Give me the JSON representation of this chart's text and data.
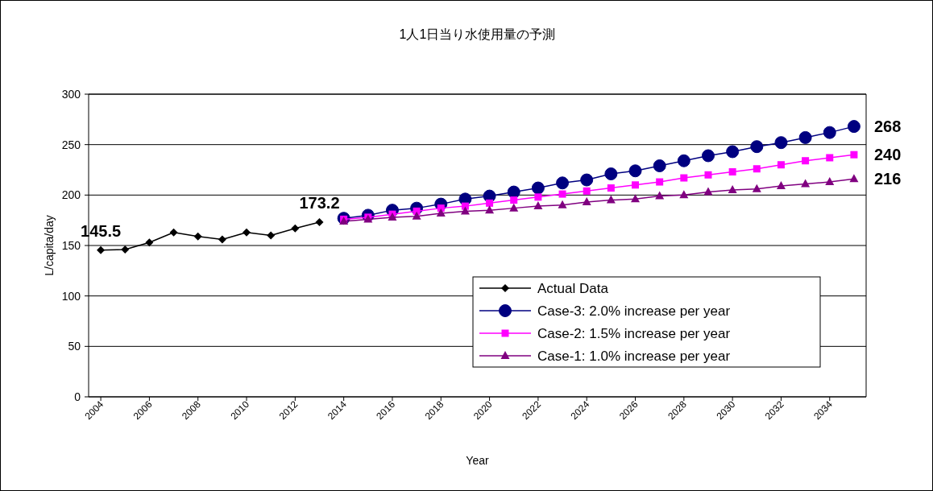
{
  "chart_data": {
    "type": "line",
    "title": "1人1日当り水使用量の予測",
    "xlabel": "Year",
    "ylabel": "L/capita/day",
    "xlim": [
      2003.5,
      2035.5
    ],
    "xticks": [
      2004,
      2006,
      2008,
      2010,
      2012,
      2014,
      2016,
      2018,
      2020,
      2022,
      2024,
      2026,
      2028,
      2030,
      2032,
      2034
    ],
    "ylim": [
      0,
      300
    ],
    "yticks": [
      0,
      50,
      100,
      150,
      200,
      250,
      300
    ],
    "grid": "y",
    "legend": "bottom right",
    "series": [
      {
        "name": "Actual Data",
        "color": "#000000",
        "marker": "diamond",
        "x": [
          2004,
          2005,
          2006,
          2007,
          2008,
          2009,
          2010,
          2011,
          2012,
          2013
        ],
        "values": [
          145.5,
          146,
          153,
          163,
          159,
          156,
          163,
          160,
          167,
          173.2
        ]
      },
      {
        "name": "Case-3: 2.0% increase per year",
        "color": "#000080",
        "marker": "circle",
        "x": [
          2014,
          2015,
          2016,
          2017,
          2018,
          2019,
          2020,
          2021,
          2022,
          2023,
          2024,
          2025,
          2026,
          2027,
          2028,
          2029,
          2030,
          2031,
          2032,
          2033,
          2034,
          2035
        ],
        "values": [
          177,
          180,
          185,
          187,
          191,
          196,
          199,
          203,
          207,
          212,
          215,
          221,
          224,
          229,
          234,
          239,
          243,
          248,
          252,
          257,
          262,
          268
        ]
      },
      {
        "name": "Case-2: 1.5% increase per year",
        "color": "#ff00ff",
        "marker": "square",
        "x": [
          2014,
          2015,
          2016,
          2017,
          2018,
          2019,
          2020,
          2021,
          2022,
          2023,
          2024,
          2025,
          2026,
          2027,
          2028,
          2029,
          2030,
          2031,
          2032,
          2033,
          2034,
          2035
        ],
        "values": [
          176,
          178,
          181,
          184,
          187,
          189,
          192,
          195,
          198,
          201,
          204,
          207,
          210,
          213,
          217,
          220,
          223,
          226,
          230,
          234,
          237,
          240
        ]
      },
      {
        "name": "Case-1: 1.0% increase per year",
        "color": "#800080",
        "marker": "triangle",
        "x": [
          2014,
          2015,
          2016,
          2017,
          2018,
          2019,
          2020,
          2021,
          2022,
          2023,
          2024,
          2025,
          2026,
          2027,
          2028,
          2029,
          2030,
          2031,
          2032,
          2033,
          2034,
          2035
        ],
        "values": [
          174,
          176,
          178,
          179,
          182,
          184,
          185,
          187,
          189,
          190,
          193,
          195,
          196,
          199,
          200,
          203,
          205,
          206,
          209,
          211,
          213,
          216
        ]
      }
    ],
    "annotations": [
      {
        "text": "145.5",
        "x": 2004,
        "y": 145.5
      },
      {
        "text": "173.2",
        "x": 2013,
        "y": 173.2
      },
      {
        "text": "268",
        "x": 2035,
        "y": 268
      },
      {
        "text": "240",
        "x": 2035,
        "y": 240
      },
      {
        "text": "216",
        "x": 2035,
        "y": 216
      }
    ]
  }
}
